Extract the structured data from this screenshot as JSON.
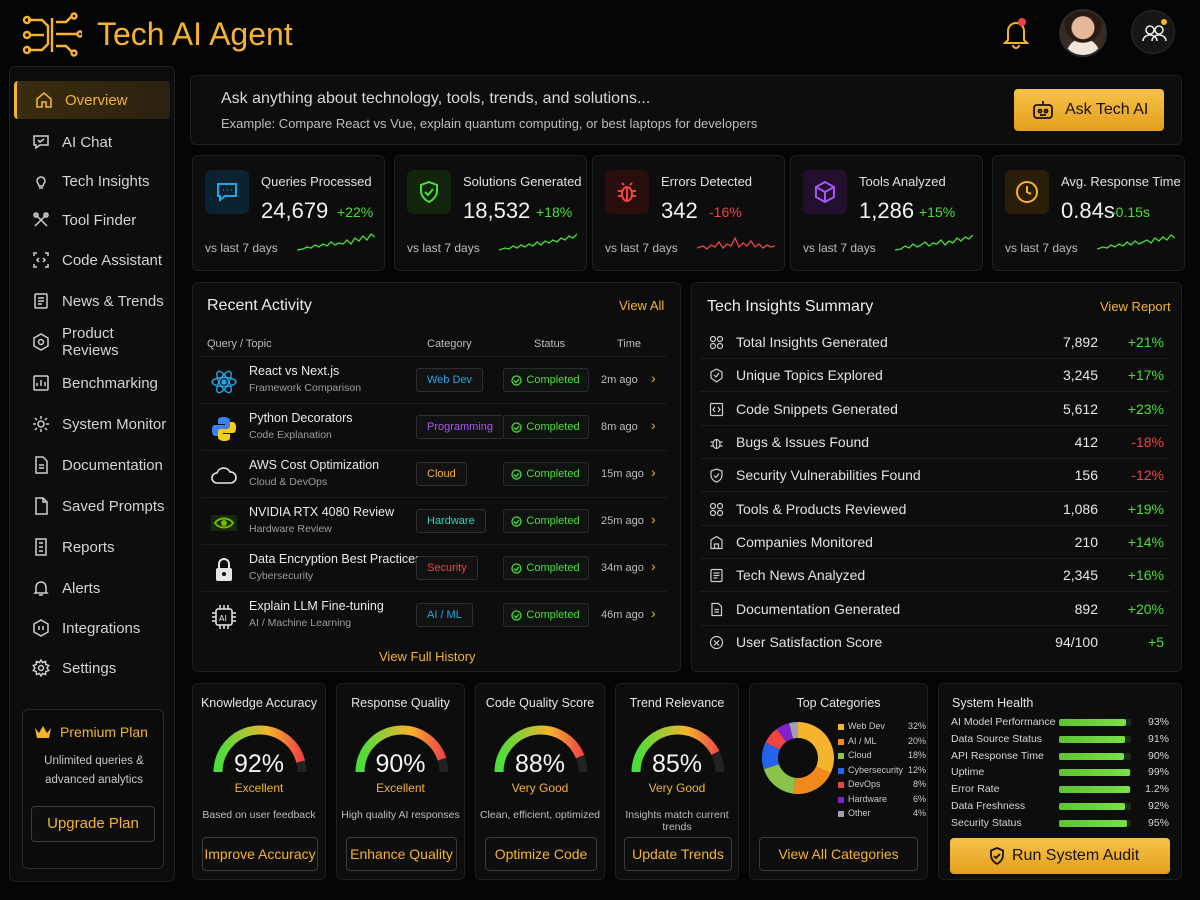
{
  "app": {
    "title": "Tech AI Agent"
  },
  "sidebar": {
    "items": [
      {
        "label": "Overview",
        "icon": "home-icon"
      },
      {
        "label": "AI Chat",
        "icon": "chat-icon"
      },
      {
        "label": "Tech Insights",
        "icon": "bulb-icon"
      },
      {
        "label": "Tool Finder",
        "icon": "tools-icon"
      },
      {
        "label": "Code Assistant",
        "icon": "code-icon"
      },
      {
        "label": "News & Trends",
        "icon": "news-icon"
      },
      {
        "label": "Product Reviews",
        "icon": "review-icon"
      },
      {
        "label": "Benchmarking",
        "icon": "chart-icon"
      },
      {
        "label": "System Monitor",
        "icon": "monitor-icon"
      },
      {
        "label": "Documentation",
        "icon": "doc-icon"
      },
      {
        "label": "Saved Prompts",
        "icon": "bookmark-icon"
      },
      {
        "label": "Reports",
        "icon": "report-icon"
      },
      {
        "label": "Alerts",
        "icon": "bell-icon"
      },
      {
        "label": "Integrations",
        "icon": "plug-icon"
      },
      {
        "label": "Settings",
        "icon": "gear-icon"
      }
    ],
    "premium": {
      "title": "Premium Plan",
      "desc_line1": "Unlimited queries &",
      "desc_line2": "advanced analytics",
      "button": "Upgrade Plan"
    }
  },
  "ask": {
    "prompt": "Ask anything about technology, tools, trends, and solutions...",
    "example": "Example: Compare React vs Vue, explain quantum computing, or best laptops for developers",
    "button": "Ask Tech AI"
  },
  "stats": [
    {
      "title": "Queries Processed",
      "value": "24,679",
      "delta": "+22%",
      "trend": "up",
      "sub": "vs last 7 days",
      "color": "#22a7e6"
    },
    {
      "title": "Solutions Generated",
      "value": "18,532",
      "delta": "+18%",
      "trend": "up",
      "sub": "vs last 7 days",
      "color": "#4ade3a"
    },
    {
      "title": "Errors Detected",
      "value": "342",
      "delta": "-16%",
      "trend": "down",
      "sub": "vs last 7 days",
      "color": "#ef4444"
    },
    {
      "title": "Tools Analyzed",
      "value": "1,286",
      "delta": "+15%",
      "trend": "up",
      "sub": "vs last 7 days",
      "color": "#a855f7"
    },
    {
      "title": "Avg. Response Time",
      "value": "0.84s",
      "delta": "-0.15s",
      "trend": "up",
      "sub": "vs last 7 days",
      "color": "#f5b32e"
    }
  ],
  "recent": {
    "title": "Recent Activity",
    "link": "View All",
    "columns": [
      "Query / Topic",
      "Category",
      "Status",
      "Time"
    ],
    "rows": [
      {
        "query": "React vs Next.js",
        "sub": "Framework Comparison",
        "category": "Web Dev",
        "cat_color": "#22a7e6",
        "status": "Completed",
        "time": "2m ago",
        "icon": "react-icon"
      },
      {
        "query": "Python Decorators",
        "sub": "Code Explanation",
        "category": "Programming",
        "cat_color": "#a855f7",
        "status": "Completed",
        "time": "8m ago",
        "icon": "python-icon"
      },
      {
        "query": "AWS Cost Optimization",
        "sub": "Cloud & DevOps",
        "category": "Cloud",
        "cat_color": "#f5b32e",
        "status": "Completed",
        "time": "15m ago",
        "icon": "cloud-icon"
      },
      {
        "query": "NVIDIA RTX 4080 Review",
        "sub": "Hardware Review",
        "category": "Hardware",
        "cat_color": "#2dd4bf",
        "status": "Completed",
        "time": "25m ago",
        "icon": "nvidia-icon"
      },
      {
        "query": "Data Encryption Best Practices",
        "sub": "Cybersecurity",
        "category": "Security",
        "cat_color": "#ef4444",
        "status": "Completed",
        "time": "34m ago",
        "icon": "lock-icon"
      },
      {
        "query": "Explain LLM Fine-tuning",
        "sub": "AI / Machine Learning",
        "category": "AI / ML",
        "cat_color": "#22a7e6",
        "status": "Completed",
        "time": "46m ago",
        "icon": "ai-chip-icon"
      }
    ],
    "footer": "View Full History"
  },
  "insights": {
    "title": "Tech Insights Summary",
    "link": "View Report",
    "rows": [
      {
        "label": "Total Insights Generated",
        "value": "7,892",
        "change": "+21%",
        "trend": "up"
      },
      {
        "label": "Unique Topics Explored",
        "value": "3,245",
        "change": "+17%",
        "trend": "up"
      },
      {
        "label": "Code Snippets Generated",
        "value": "5,612",
        "change": "+23%",
        "trend": "up"
      },
      {
        "label": "Bugs & Issues Found",
        "value": "412",
        "change": "-18%",
        "trend": "down"
      },
      {
        "label": "Security Vulnerabilities Found",
        "value": "156",
        "change": "-12%",
        "trend": "down"
      },
      {
        "label": "Tools & Products Reviewed",
        "value": "1,086",
        "change": "+19%",
        "trend": "up"
      },
      {
        "label": "Companies Monitored",
        "value": "210",
        "change": "+14%",
        "trend": "up"
      },
      {
        "label": "Tech News Analyzed",
        "value": "2,345",
        "change": "+16%",
        "trend": "up"
      },
      {
        "label": "Documentation Generated",
        "value": "892",
        "change": "+20%",
        "trend": "up"
      },
      {
        "label": "User Satisfaction Score",
        "value": "94/100",
        "change": "+5",
        "trend": "up"
      }
    ]
  },
  "gauges": [
    {
      "title": "Knowledge Accuracy",
      "value": "92%",
      "fraction": 0.92,
      "label": "Excellent",
      "desc": "Based on user feedback",
      "button": "Improve Accuracy"
    },
    {
      "title": "Response Quality",
      "value": "90%",
      "fraction": 0.9,
      "label": "Excellent",
      "desc": "High quality AI responses",
      "button": "Enhance Quality"
    },
    {
      "title": "Code Quality Score",
      "value": "88%",
      "fraction": 0.88,
      "label": "Very Good",
      "desc": "Clean, efficient, optimized",
      "button": "Optimize Code"
    },
    {
      "title": "Trend Relevance",
      "value": "85%",
      "fraction": 0.85,
      "label": "Very Good",
      "desc": "Insights match current trends",
      "button": "Update Trends"
    }
  ],
  "categories": {
    "title": "Top Categories",
    "button": "View All Categories",
    "chart_data": {
      "type": "pie",
      "categories": [
        "Web Dev",
        "AI / ML",
        "Cloud",
        "Cybersecurity",
        "DevOps",
        "Hardware",
        "Other"
      ],
      "values": [
        32,
        20,
        18,
        12,
        8,
        6,
        4
      ],
      "colors": [
        "#f5b32e",
        "#f08a1c",
        "#8bc34a",
        "#2563eb",
        "#ef4444",
        "#7e22ce",
        "#9ca3af"
      ]
    },
    "labels": [
      "32%",
      "20%",
      "18%",
      "12%",
      "8%",
      "6%",
      "4%"
    ]
  },
  "health": {
    "title": "System Health",
    "rows": [
      {
        "name": "AI Model Performance",
        "pct": "93%",
        "value": 0.93
      },
      {
        "name": "Data Source Status",
        "pct": "91%",
        "value": 0.91
      },
      {
        "name": "API Response Time",
        "pct": "90%",
        "value": 0.9
      },
      {
        "name": "Uptime",
        "pct": "99%",
        "value": 0.99
      },
      {
        "name": "Error Rate",
        "pct": "1.2%",
        "value": 0.012
      },
      {
        "name": "Data Freshness",
        "pct": "92%",
        "value": 0.92
      },
      {
        "name": "Security Status",
        "pct": "95%",
        "value": 0.95
      }
    ],
    "button": "Run System Audit"
  }
}
